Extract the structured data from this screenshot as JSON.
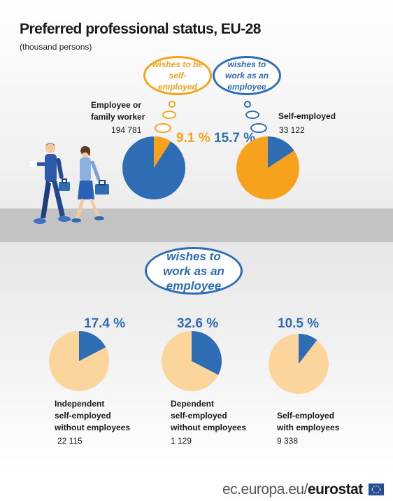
{
  "title": "Preferred professional status, EU-28",
  "subtitle": "(thousand persons)",
  "colors": {
    "blue": "#2e6db4",
    "orange": "#f6a21d",
    "peach": "#fcd59c"
  },
  "top": {
    "bubble_left": "wishes to be self-employed",
    "bubble_right": "wishes to work as an employee",
    "employee_label_1": "Employee or",
    "employee_label_2": "family worker",
    "employee_value": "194 781",
    "employee_pct": "9.1 %",
    "self_label": "Self-employed",
    "self_value": "33 122",
    "self_pct": "15.7 %"
  },
  "bottom": {
    "bubble": "wishes to work as an employee",
    "groups": [
      {
        "pct": "17.4 %",
        "label_1": "Independent",
        "label_2": "self-employed",
        "label_3": "without employees",
        "value": "22 115"
      },
      {
        "pct": "32.6 %",
        "label_1": "Dependent",
        "label_2": "self-employed",
        "label_3": "without employees",
        "value": "1 129"
      },
      {
        "pct": "10.5 %",
        "label_1": "Self-employed",
        "label_2": "with employees",
        "label_3": "",
        "value": "9 338"
      }
    ]
  },
  "footer": {
    "domain": "ec.europa.eu/",
    "brand": "eurostat"
  },
  "chart_data": [
    {
      "type": "pie",
      "title": "Employee or family worker",
      "total": 194781,
      "slices": [
        {
          "name": "wishes to be self-employed",
          "value": 9.1
        },
        {
          "name": "",
          "value": 90.9
        }
      ]
    },
    {
      "type": "pie",
      "title": "Self-employed",
      "total": 33122,
      "slices": [
        {
          "name": "wishes to work as an employee",
          "value": 15.7
        },
        {
          "name": "",
          "value": 84.3
        }
      ]
    },
    {
      "type": "pie",
      "title": "Independent self-employed without employees",
      "total": 22115,
      "slices": [
        {
          "name": "wishes to work as an employee",
          "value": 17.4
        },
        {
          "name": "",
          "value": 82.6
        }
      ]
    },
    {
      "type": "pie",
      "title": "Dependent self-employed without employees",
      "total": 1129,
      "slices": [
        {
          "name": "wishes to work as an employee",
          "value": 32.6
        },
        {
          "name": "",
          "value": 67.4
        }
      ]
    },
    {
      "type": "pie",
      "title": "Self-employed with employees",
      "total": 9338,
      "slices": [
        {
          "name": "wishes to work as an employee",
          "value": 10.5
        },
        {
          "name": "",
          "value": 89.5
        }
      ]
    }
  ]
}
